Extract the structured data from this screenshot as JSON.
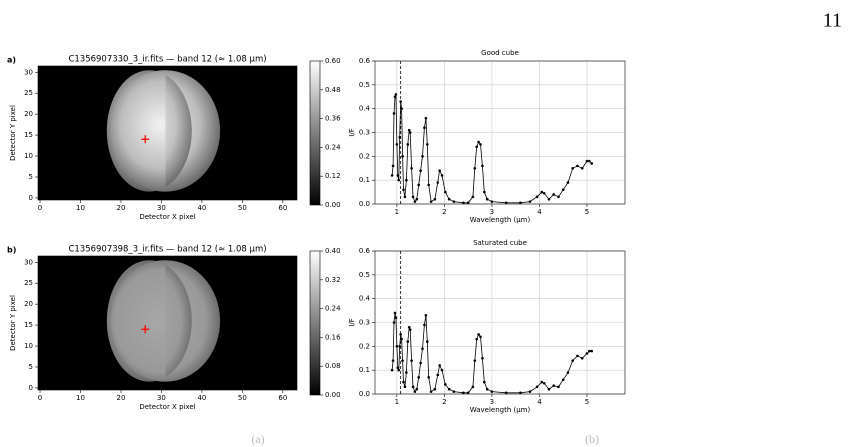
{
  "page_number": "11",
  "chart_data": [
    {
      "type": "image",
      "panel": "a)",
      "title": "C1356907330_3_ir.fits — band 12 (≈ 1.08 µm)",
      "xlabel": "Detector X pixel",
      "ylabel": "Detector Y pixel",
      "xlim": [
        -0.5,
        63.5
      ],
      "ylim": [
        -0.5,
        31.5
      ],
      "xticks": [
        0,
        10,
        20,
        30,
        40,
        50,
        60
      ],
      "yticks": [
        0,
        5,
        10,
        15,
        20,
        25,
        30
      ],
      "marker": {
        "x": 26,
        "y": 14,
        "color": "#ff0000"
      },
      "colorbar": {
        "lim": [
          0,
          0.6
        ],
        "ticks": [
          {
            "value": 0,
            "label": "0.00"
          },
          {
            "value": 0.12,
            "label": "0.12"
          },
          {
            "value": 0.24,
            "label": "0.24"
          },
          {
            "value": 0.36,
            "label": "0.36"
          },
          {
            "value": 0.48,
            "label": "0.48"
          },
          {
            "value": 0.6,
            "label": "0.60"
          }
        ]
      }
    },
    {
      "type": "line",
      "title": "Good cube",
      "xlabel": "Wavelength (µm)",
      "ylabel": "I/F",
      "xlim": [
        0.54,
        5.8
      ],
      "ylim": [
        0,
        0.6
      ],
      "grid": true,
      "xticks": [
        1,
        2,
        3,
        4,
        5
      ],
      "yticks": [
        {
          "value": 0,
          "label": "0.0"
        },
        0.1,
        0.2,
        0.3,
        0.4,
        0.5,
        0.6
      ],
      "vline": 1.08,
      "series": [
        {
          "color": "#000000",
          "x": [
            0.9,
            0.92,
            0.94,
            0.96,
            0.98,
            1.0,
            1.02,
            1.04,
            1.06,
            1.08,
            1.1,
            1.12,
            1.14,
            1.17,
            1.2,
            1.23,
            1.26,
            1.28,
            1.31,
            1.34,
            1.38,
            1.42,
            1.46,
            1.5,
            1.54,
            1.58,
            1.61,
            1.64,
            1.67,
            1.72,
            1.8,
            1.86,
            1.9,
            1.95,
            2.02,
            2.1,
            2.2,
            2.4,
            2.5,
            2.6,
            2.64,
            2.68,
            2.72,
            2.76,
            2.8,
            2.84,
            2.9,
            3.0,
            3.3,
            3.6,
            3.8,
            3.95,
            4.05,
            4.1,
            4.2,
            4.3,
            4.4,
            4.5,
            4.6,
            4.7,
            4.8,
            4.9,
            5.0,
            5.05,
            5.1
          ],
          "values": [
            0.12,
            0.16,
            0.38,
            0.45,
            0.46,
            0.25,
            0.12,
            0.1,
            0.28,
            0.43,
            0.4,
            0.2,
            0.06,
            0.03,
            0.1,
            0.25,
            0.31,
            0.3,
            0.15,
            0.03,
            0.01,
            0.02,
            0.08,
            0.14,
            0.2,
            0.32,
            0.36,
            0.25,
            0.08,
            0.01,
            0.02,
            0.09,
            0.14,
            0.12,
            0.05,
            0.02,
            0.01,
            0.005,
            0.005,
            0.03,
            0.15,
            0.24,
            0.26,
            0.25,
            0.16,
            0.05,
            0.02,
            0.01,
            0.005,
            0.005,
            0.01,
            0.03,
            0.05,
            0.045,
            0.02,
            0.04,
            0.03,
            0.06,
            0.09,
            0.15,
            0.16,
            0.15,
            0.18,
            0.18,
            0.17
          ]
        }
      ]
    },
    {
      "type": "image",
      "panel": "b)",
      "title": "C1356907398_3_ir.fits — band 12 (≈ 1.08 µm)",
      "xlabel": "Detector X pixel",
      "ylabel": "Detector Y pixel",
      "xlim": [
        -0.5,
        63.5
      ],
      "ylim": [
        -0.5,
        31.5
      ],
      "xticks": [
        0,
        10,
        20,
        30,
        40,
        50,
        60
      ],
      "yticks": [
        0,
        5,
        10,
        15,
        20,
        25,
        30
      ],
      "marker": {
        "x": 26,
        "y": 14,
        "color": "#ff0000"
      },
      "colorbar": {
        "lim": [
          0,
          0.4
        ],
        "ticks": [
          {
            "value": 0,
            "label": "0.00"
          },
          {
            "value": 0.08,
            "label": "0.08"
          },
          {
            "value": 0.16,
            "label": "0.16"
          },
          {
            "value": 0.24,
            "label": "0.24"
          },
          {
            "value": 0.32,
            "label": "0.32"
          },
          {
            "value": 0.4,
            "label": "0.40"
          }
        ]
      }
    },
    {
      "type": "line",
      "title": "Saturated cube",
      "xlabel": "Wavelength (µm)",
      "ylabel": "I/F",
      "xlim": [
        0.54,
        5.8
      ],
      "ylim": [
        0,
        0.6
      ],
      "grid": true,
      "xticks": [
        1,
        2,
        3,
        4,
        5
      ],
      "yticks": [
        {
          "value": 0,
          "label": "0.0"
        },
        0.1,
        0.2,
        0.3,
        0.4,
        0.5,
        0.6
      ],
      "vline": 1.08,
      "series": [
        {
          "color": "#000000",
          "x": [
            0.9,
            0.92,
            0.94,
            0.96,
            0.98,
            1.0,
            1.02,
            1.04,
            1.06,
            1.08,
            1.1,
            1.12,
            1.14,
            1.17,
            1.2,
            1.23,
            1.26,
            1.28,
            1.31,
            1.34,
            1.38,
            1.42,
            1.46,
            1.5,
            1.54,
            1.58,
            1.61,
            1.64,
            1.67,
            1.72,
            1.8,
            1.86,
            1.9,
            1.95,
            2.02,
            2.1,
            2.2,
            2.4,
            2.5,
            2.6,
            2.64,
            2.68,
            2.72,
            2.76,
            2.8,
            2.84,
            2.9,
            3.0,
            3.3,
            3.6,
            3.8,
            3.95,
            4.05,
            4.1,
            4.2,
            4.3,
            4.4,
            4.5,
            4.6,
            4.7,
            4.8,
            4.9,
            5.0,
            5.05,
            5.1
          ],
          "values": [
            0.1,
            0.14,
            0.3,
            0.34,
            0.32,
            0.2,
            0.11,
            0.1,
            0.2,
            0.25,
            0.23,
            0.14,
            0.05,
            0.03,
            0.09,
            0.22,
            0.28,
            0.27,
            0.14,
            0.03,
            0.01,
            0.02,
            0.07,
            0.13,
            0.19,
            0.29,
            0.33,
            0.22,
            0.07,
            0.01,
            0.02,
            0.08,
            0.12,
            0.1,
            0.04,
            0.02,
            0.01,
            0.005,
            0.005,
            0.03,
            0.14,
            0.23,
            0.25,
            0.24,
            0.15,
            0.05,
            0.02,
            0.01,
            0.005,
            0.005,
            0.01,
            0.03,
            0.05,
            0.045,
            0.02,
            0.035,
            0.03,
            0.06,
            0.09,
            0.14,
            0.16,
            0.15,
            0.17,
            0.18,
            0.18
          ]
        }
      ]
    }
  ],
  "captions": [
    "(a)",
    "(b)"
  ]
}
